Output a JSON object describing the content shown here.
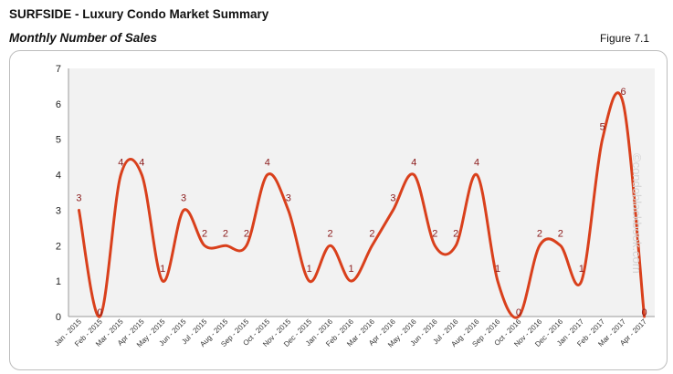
{
  "header": {
    "title": "SURFSIDE - Luxury Condo Market Summary",
    "subtitle": "Monthly Number of Sales",
    "figure": "Figure 7.1"
  },
  "watermark": "©condoblackbook.com",
  "chart_data": {
    "type": "line",
    "smooth": true,
    "title": "Monthly Number of Sales",
    "xlabel": "",
    "ylabel": "",
    "ylim": [
      0,
      7
    ],
    "yticks": [
      0,
      1,
      2,
      3,
      4,
      5,
      6,
      7
    ],
    "grid": false,
    "legend": "none",
    "line_color": "#d9401c",
    "label_color": "#8b1a1a",
    "categories": [
      "Jan - 2015",
      "Feb - 2015",
      "Mar - 2015",
      "Apr - 2015",
      "May - 2015",
      "Jun - 2015",
      "Jul - 2015",
      "Aug - 2015",
      "Sep - 2015",
      "Oct - 2015",
      "Nov - 2015",
      "Dec - 2015",
      "Jan - 2016",
      "Feb - 2016",
      "Mar - 2016",
      "Apr - 2016",
      "May - 2016",
      "Jun - 2016",
      "Jul - 2016",
      "Aug - 2016",
      "Sep - 2016",
      "Oct - 2016",
      "Nov - 2016",
      "Dec - 2016",
      "Jan - 2017",
      "Feb - 2017",
      "Mar - 2017",
      "Apr - 2017"
    ],
    "values": [
      3,
      0,
      4,
      4,
      1,
      3,
      2,
      2,
      2,
      4,
      3,
      1,
      2,
      1,
      2,
      3,
      4,
      2,
      2,
      4,
      1,
      0,
      2,
      2,
      1,
      5,
      6,
      0
    ],
    "data_labels": [
      "3",
      "0",
      "4",
      "4",
      "1",
      "3",
      "2",
      "2",
      "2",
      "4",
      "3",
      "1",
      "2",
      "1",
      "2",
      "3",
      "4",
      "2",
      "2",
      "4",
      "1",
      "0",
      "2",
      "2",
      "1",
      "5",
      "6",
      "0"
    ]
  }
}
